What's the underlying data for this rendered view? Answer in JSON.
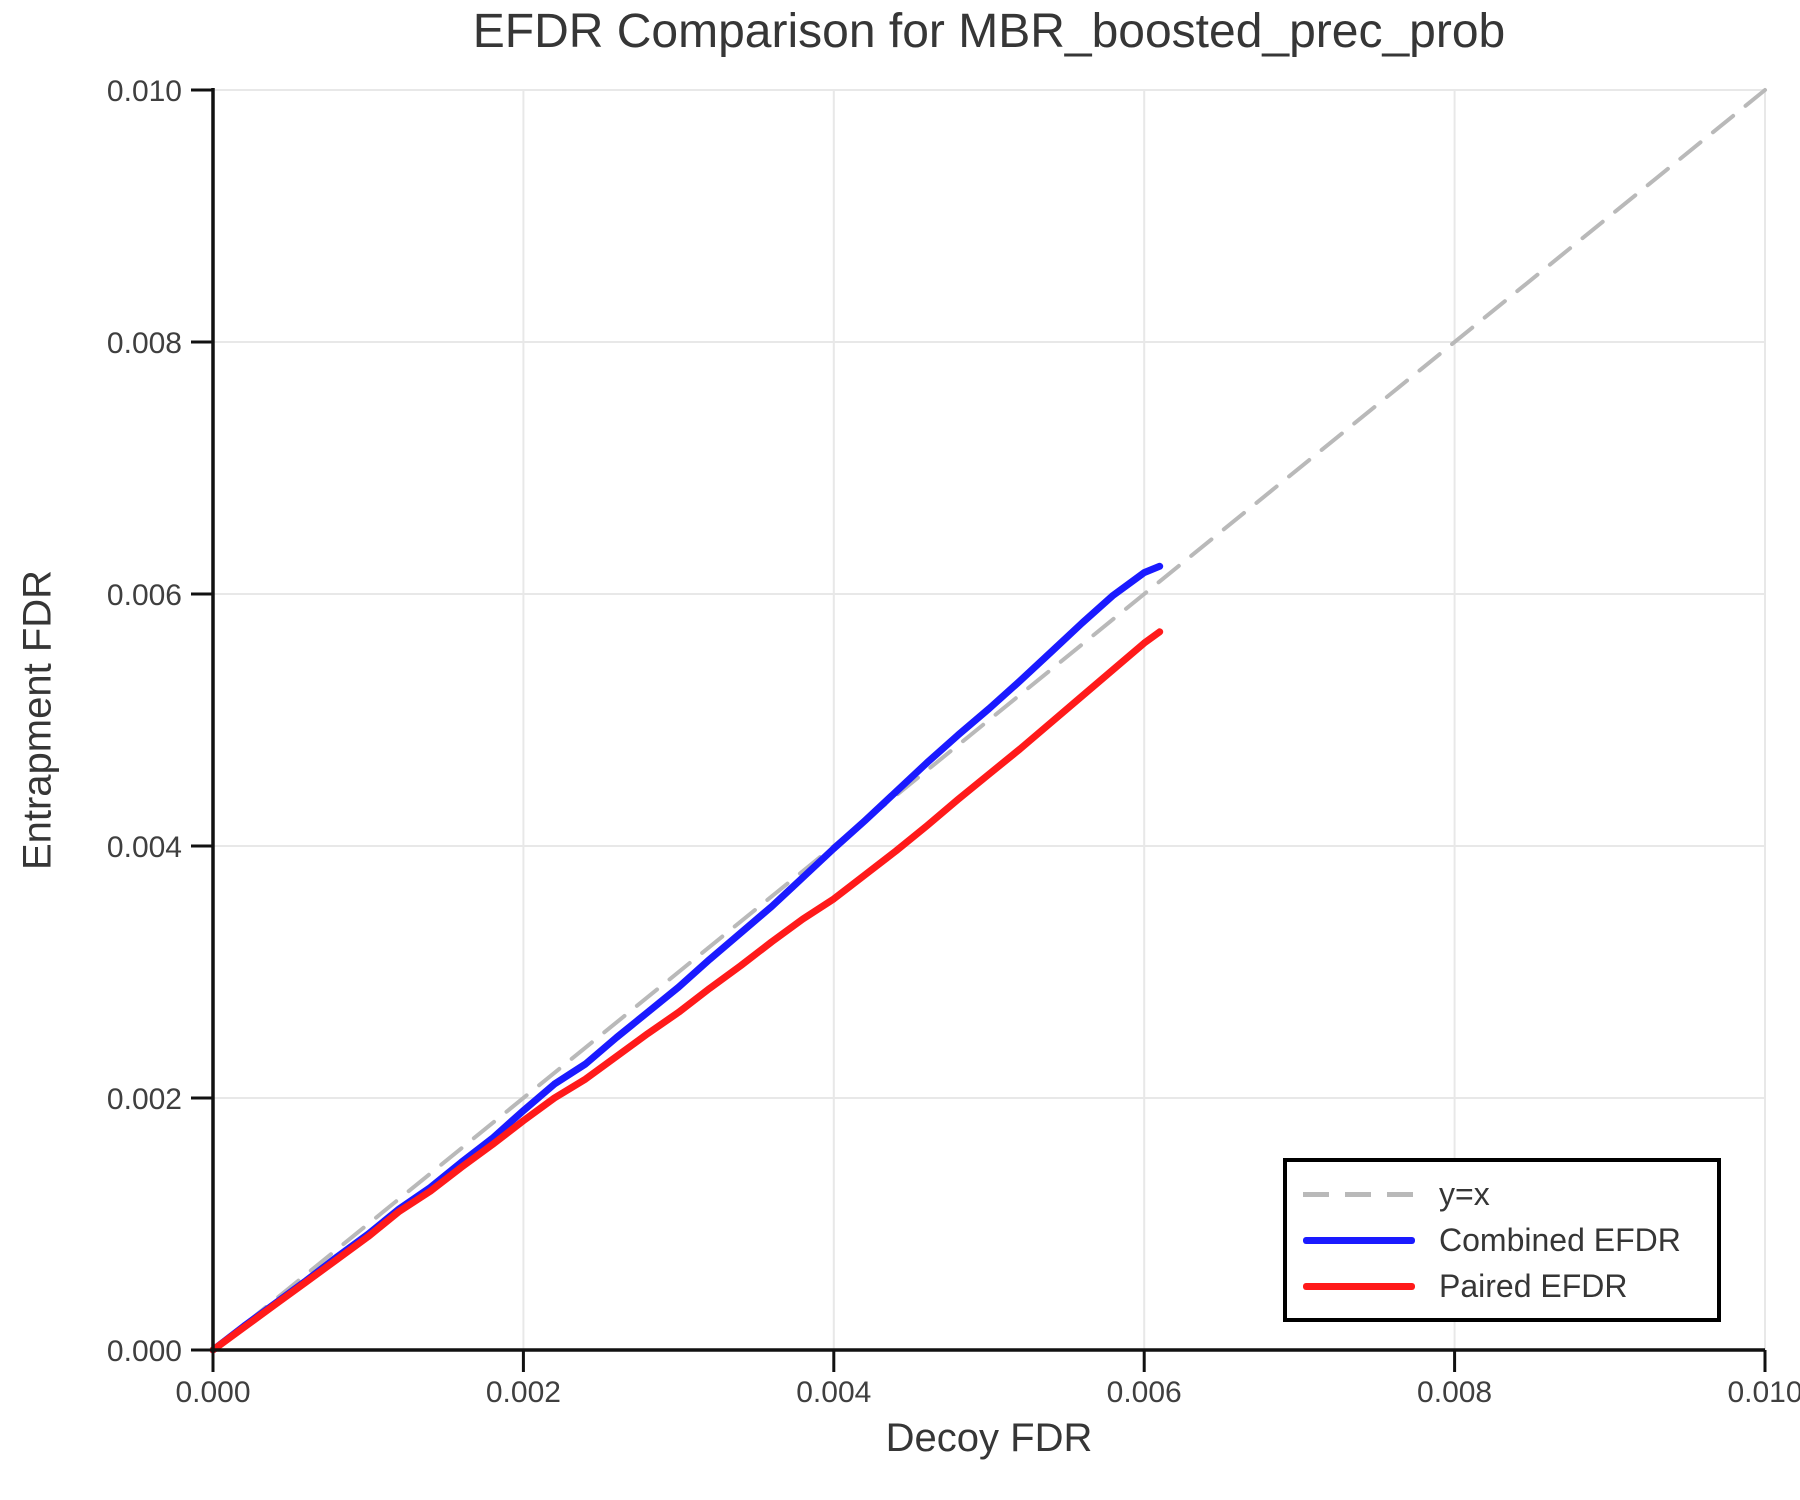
{
  "chart_data": {
    "type": "line",
    "title": "EFDR Comparison for MBR_boosted_prec_prob",
    "xlabel": "Decoy FDR",
    "ylabel": "Entrapment FDR",
    "xlim": [
      0.0,
      0.01
    ],
    "ylim": [
      0.0,
      0.01
    ],
    "grid": true,
    "legend_position": "bottom-right",
    "xticks": {
      "values": [
        0.0,
        0.002,
        0.004,
        0.006,
        0.008,
        0.01
      ],
      "labels": [
        "0.000",
        "0.002",
        "0.004",
        "0.006",
        "0.008",
        "0.010"
      ]
    },
    "yticks": {
      "values": [
        0.0,
        0.002,
        0.004,
        0.006,
        0.008,
        0.01
      ],
      "labels": [
        "0.000",
        "0.002",
        "0.004",
        "0.006",
        "0.008",
        "0.010"
      ]
    },
    "series": [
      {
        "name": "y=x",
        "slug": "y-equals-x",
        "color": "#b9b9b9",
        "style": "dashed",
        "width": 4,
        "x": [
          0.0,
          0.01
        ],
        "y": [
          0.0,
          0.01
        ]
      },
      {
        "name": "Combined EFDR",
        "slug": "combined-efdr",
        "color": "#1a1aff",
        "style": "solid",
        "width": 7,
        "x": [
          0.0,
          0.0002,
          0.0004,
          0.0006,
          0.0008,
          0.001,
          0.0012,
          0.0014,
          0.0016,
          0.0018,
          0.002,
          0.0022,
          0.0024,
          0.0026,
          0.0028,
          0.003,
          0.0032,
          0.0034,
          0.0036,
          0.0038,
          0.004,
          0.0042,
          0.0044,
          0.0046,
          0.0048,
          0.005,
          0.0052,
          0.0054,
          0.0056,
          0.0058,
          0.006,
          0.0061
        ],
        "y": [
          0.0,
          0.00019,
          0.00037,
          0.00055,
          0.00074,
          0.00092,
          0.00112,
          0.00129,
          0.00149,
          0.00168,
          0.0019,
          0.00211,
          0.00227,
          0.00248,
          0.00268,
          0.00288,
          0.0031,
          0.00331,
          0.00352,
          0.00375,
          0.00398,
          0.0042,
          0.00443,
          0.00466,
          0.00488,
          0.00509,
          0.00531,
          0.00554,
          0.00577,
          0.00599,
          0.00617,
          0.00622
        ]
      },
      {
        "name": "Paired EFDR",
        "slug": "paired-efdr",
        "color": "#ff1a1a",
        "style": "solid",
        "width": 7,
        "x": [
          0.0,
          0.0002,
          0.0004,
          0.0006,
          0.0008,
          0.001,
          0.0012,
          0.0014,
          0.0016,
          0.0018,
          0.002,
          0.0022,
          0.0024,
          0.0026,
          0.0028,
          0.003,
          0.0032,
          0.0034,
          0.0036,
          0.0038,
          0.004,
          0.0042,
          0.0044,
          0.0046,
          0.0048,
          0.005,
          0.0052,
          0.0054,
          0.0056,
          0.0058,
          0.006,
          0.0061
        ],
        "y": [
          0.0,
          0.00018,
          0.00036,
          0.00054,
          0.00072,
          0.0009,
          0.0011,
          0.00126,
          0.00145,
          0.00163,
          0.00182,
          0.002,
          0.00215,
          0.00233,
          0.00251,
          0.00268,
          0.00287,
          0.00305,
          0.00324,
          0.00342,
          0.00358,
          0.00377,
          0.00396,
          0.00416,
          0.00437,
          0.00457,
          0.00477,
          0.00498,
          0.00519,
          0.0054,
          0.00561,
          0.0057
        ]
      }
    ],
    "style": {
      "grid_color": "#e8e8e8",
      "spine_color": "#111111",
      "tick_label_color": "#3f3f3f",
      "text_color": "#363636",
      "background": "#ffffff"
    }
  }
}
